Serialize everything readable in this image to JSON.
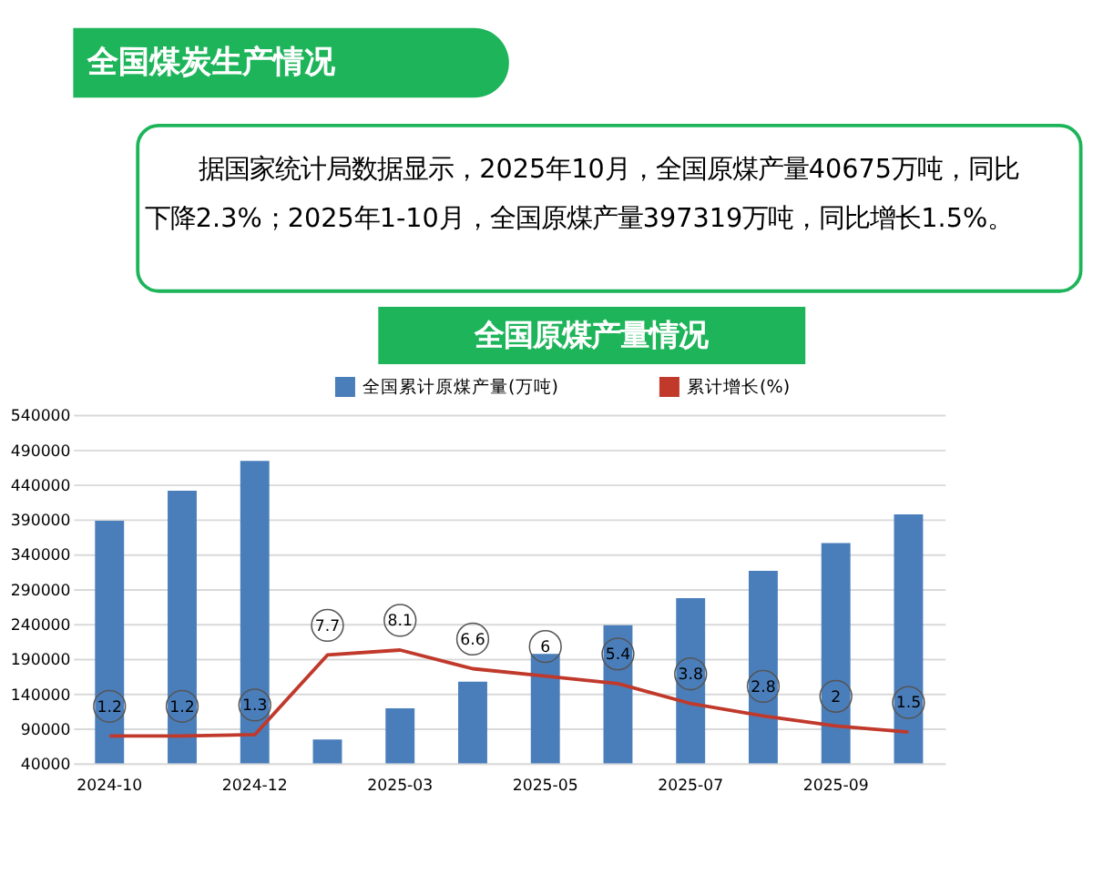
{
  "chart_data": {
    "type": "bar",
    "title": "全国原煤产量情况",
    "annotations": [
      "全国煤炭生产情况",
      "据国家统计局数据显示，2025年10月，全国原煤产量40675万吨，同比下降2.3%；2025年1-10月，全国原煤产量397319万吨，同比增长1.5%。"
    ],
    "categories": [
      "2024-10",
      null,
      "2024-12",
      null,
      "2025-03",
      null,
      "2025-05",
      null,
      "2025-07",
      null,
      "2025-09",
      null
    ],
    "series": [
      {
        "name": "全国累计原煤产量(万吨)",
        "color": "#4a7ebb",
        "values": [
          388000,
          431000,
          474000,
          74000,
          119000,
          157000,
          197000,
          238000,
          277000,
          316000,
          356000,
          397000
        ]
      },
      {
        "name": "累计增长(%)",
        "color": "#c0392b",
        "type": "line",
        "axis": "y2",
        "values": [
          1.2,
          1.2,
          1.3,
          7.7,
          8.1,
          6.6,
          6,
          5.4,
          3.8,
          2.8,
          2,
          1.5
        ],
        "value_labels": [
          "1.2",
          "1.2",
          "1.3",
          "7.7",
          "8.1",
          "6.6",
          "6",
          "5.4",
          "3.8",
          "2.8",
          "2",
          "1.5"
        ]
      }
    ],
    "ylim": [
      40000,
      540000
    ],
    "yticks": [
      40000,
      90000,
      140000,
      190000,
      240000,
      290000,
      340000,
      390000,
      440000,
      490000,
      540000
    ],
    "y2lim": [
      -1,
      27
    ],
    "grid": "y",
    "legend": "top"
  }
}
